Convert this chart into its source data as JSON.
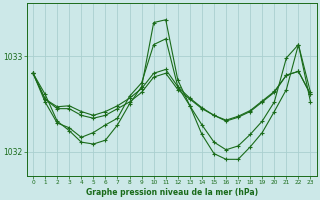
{
  "title": "Graphe pression niveau de la mer (hPa)",
  "bg_color": "#cce8e8",
  "plot_bg_color": "#cce8e8",
  "line_color": "#1a6b1a",
  "grid_color": "#aacfcf",
  "yticks": [
    1032,
    1033
  ],
  "xticks": [
    0,
    1,
    2,
    3,
    4,
    5,
    6,
    7,
    8,
    9,
    10,
    11,
    12,
    13,
    14,
    15,
    16,
    17,
    18,
    19,
    20,
    21,
    22,
    23
  ],
  "series": [
    [
      1032.82,
      1032.55,
      1032.45,
      1032.45,
      1032.38,
      1032.35,
      1032.38,
      1032.45,
      1032.52,
      1032.62,
      1032.78,
      1032.82,
      1032.65,
      1032.55,
      1032.45,
      1032.38,
      1032.32,
      1032.36,
      1032.42,
      1032.52,
      1032.62,
      1032.8,
      1032.84,
      1032.6
    ],
    [
      1032.82,
      1032.55,
      1032.47,
      1032.48,
      1032.42,
      1032.38,
      1032.42,
      1032.48,
      1032.56,
      1032.66,
      1032.82,
      1032.86,
      1032.68,
      1032.56,
      1032.46,
      1032.38,
      1032.33,
      1032.37,
      1032.43,
      1032.53,
      1032.63,
      1032.8,
      1032.84,
      1032.6
    ],
    [
      1032.82,
      1032.6,
      1032.32,
      1032.22,
      1032.1,
      1032.08,
      1032.12,
      1032.28,
      1032.5,
      1032.68,
      1033.35,
      1033.38,
      1032.75,
      1032.48,
      1032.18,
      1031.98,
      1031.92,
      1031.92,
      1032.05,
      1032.2,
      1032.42,
      1032.65,
      1033.12,
      1032.52
    ],
    [
      1032.82,
      1032.52,
      1032.3,
      1032.25,
      1032.15,
      1032.2,
      1032.28,
      1032.35,
      1032.58,
      1032.72,
      1033.12,
      1033.18,
      1032.68,
      1032.48,
      1032.28,
      1032.1,
      1032.02,
      1032.06,
      1032.18,
      1032.32,
      1032.52,
      1032.98,
      1033.12,
      1032.62
    ]
  ],
  "xlim": [
    -0.5,
    23.5
  ],
  "ylim": [
    1031.75,
    1033.55
  ],
  "figsize": [
    3.2,
    2.0
  ],
  "dpi": 100
}
